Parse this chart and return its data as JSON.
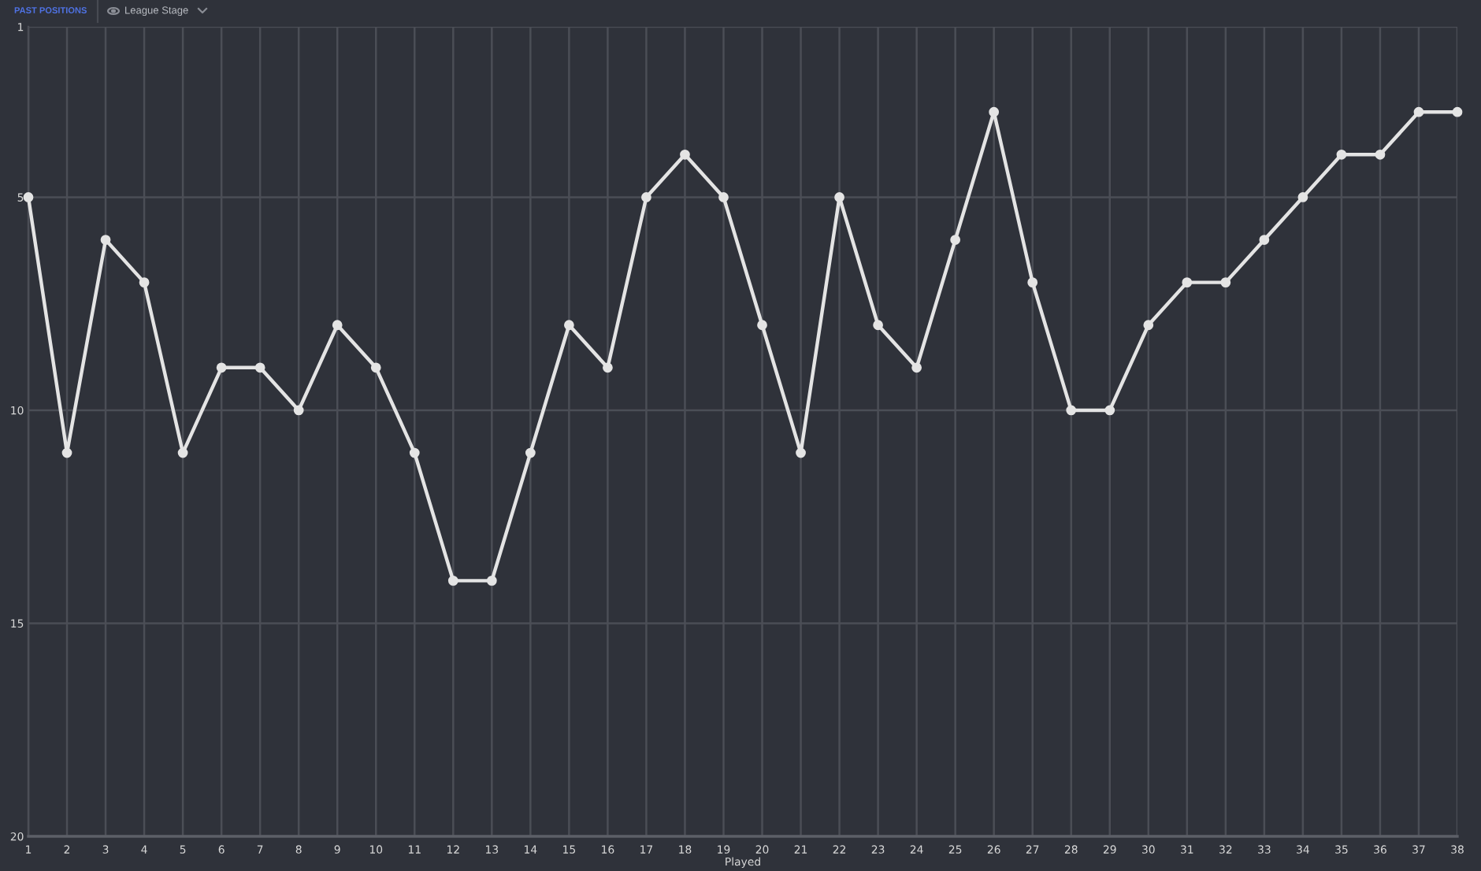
{
  "chart_data": {
    "type": "line",
    "title": "PAST POSITIONS",
    "subtitle": "League Stage",
    "xlabel": "Played",
    "x": [
      1,
      2,
      3,
      4,
      5,
      6,
      7,
      8,
      9,
      10,
      11,
      12,
      13,
      14,
      15,
      16,
      17,
      18,
      19,
      20,
      21,
      22,
      23,
      24,
      25,
      26,
      27,
      28,
      29,
      30,
      31,
      32,
      33,
      34,
      35,
      36,
      37,
      38
    ],
    "series": [
      {
        "color": "#e4e4e4",
        "values": [
          5,
          11,
          6,
          7,
          11,
          9,
          9,
          10,
          8,
          9,
          11,
          14,
          14,
          11,
          8,
          9,
          5,
          4,
          5,
          8,
          11,
          5,
          8,
          9,
          6,
          3,
          7,
          10,
          10,
          8,
          7,
          7,
          6,
          5,
          4,
          4,
          3,
          3
        ]
      }
    ],
    "xlim": [
      1,
      38
    ],
    "xticks": [
      1,
      2,
      3,
      4,
      5,
      6,
      7,
      8,
      9,
      10,
      11,
      12,
      13,
      14,
      15,
      16,
      17,
      18,
      19,
      20,
      21,
      22,
      23,
      24,
      25,
      26,
      27,
      28,
      29,
      30,
      31,
      32,
      33,
      34,
      35,
      36,
      37,
      38
    ],
    "ylim": [
      20,
      1
    ],
    "yticks": [
      1,
      5,
      10,
      15,
      20
    ],
    "grid": true,
    "marker": "circle",
    "line_style": "solid"
  }
}
